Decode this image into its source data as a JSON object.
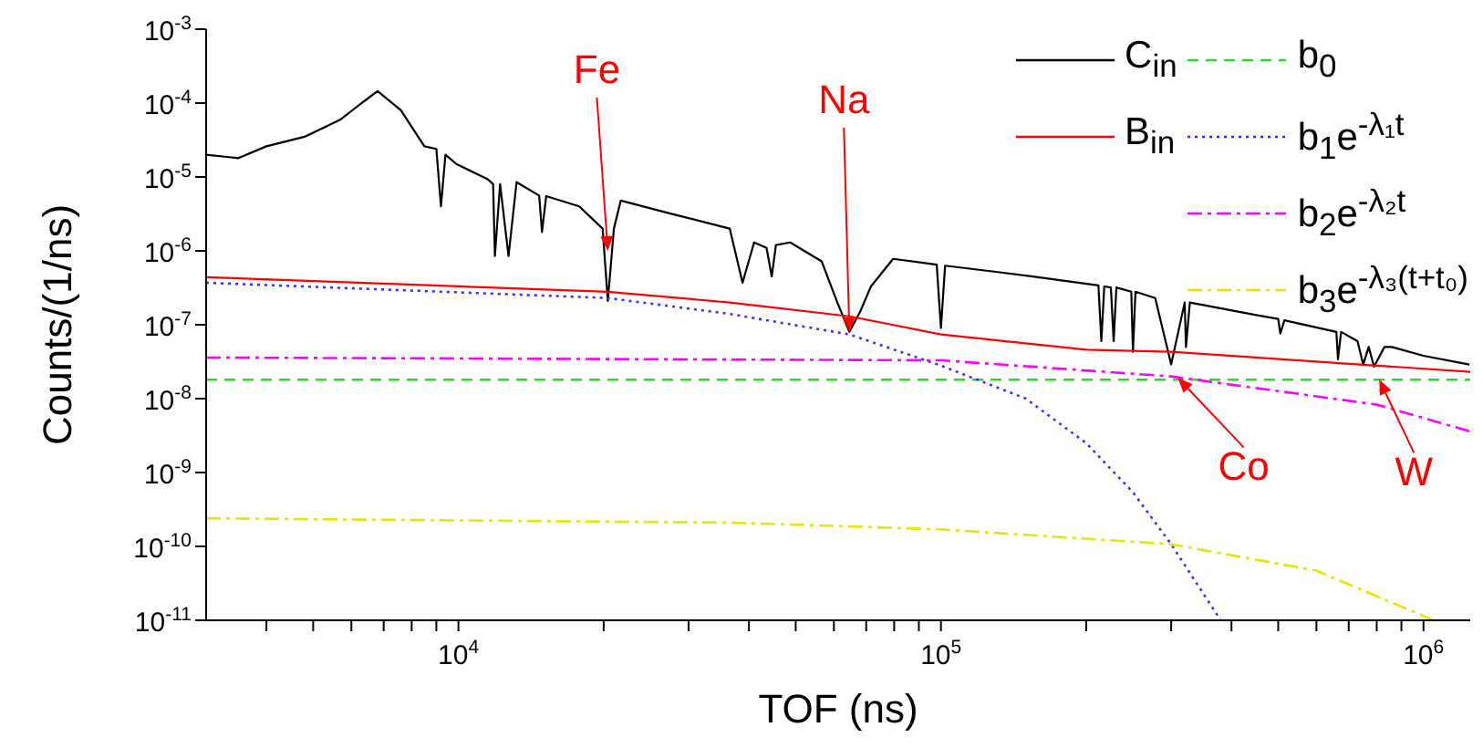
{
  "chart_data": {
    "type": "line",
    "xlabel": "TOF (ns)",
    "ylabel": "Counts/(1/ns)",
    "log": "xy",
    "legend": "top right",
    "xlim": [
      3000,
      1250000
    ],
    "xticks": [
      {
        "value": 4000,
        "label": null
      },
      {
        "value": 5000,
        "label": null
      },
      {
        "value": 6000,
        "label": null
      },
      {
        "value": 7000,
        "label": null
      },
      {
        "value": 8000,
        "label": null
      },
      {
        "value": 9000,
        "label": null
      },
      {
        "value": 10000,
        "label": "10$^{4}$"
      },
      {
        "value": 20000,
        "label": null
      },
      {
        "value": 30000,
        "label": null
      },
      {
        "value": 40000,
        "label": null
      },
      {
        "value": 50000,
        "label": null
      },
      {
        "value": 60000,
        "label": null
      },
      {
        "value": 70000,
        "label": null
      },
      {
        "value": 80000,
        "label": null
      },
      {
        "value": 90000,
        "label": null
      },
      {
        "value": 100000,
        "label": "10$^{5}$"
      },
      {
        "value": 200000,
        "label": null
      },
      {
        "value": 300000,
        "label": null
      },
      {
        "value": 400000,
        "label": null
      },
      {
        "value": 500000,
        "label": null
      },
      {
        "value": 600000,
        "label": null
      },
      {
        "value": 700000,
        "label": null
      },
      {
        "value": 800000,
        "label": null
      },
      {
        "value": 900000,
        "label": null
      },
      {
        "value": 1000000,
        "label": "10$^{6}$"
      }
    ],
    "ylim": [
      1e-11,
      0.001
    ],
    "yticks": [
      {
        "value": 1e-11,
        "label": "10$^{-11}$"
      },
      {
        "value": 1e-10,
        "label": "10$^{-10}$"
      },
      {
        "value": 1e-09,
        "label": "10$^{-9}$"
      },
      {
        "value": 1e-08,
        "label": "10$^{-8}$"
      },
      {
        "value": 1e-07,
        "label": "10$^{-7}$"
      },
      {
        "value": 1e-06,
        "label": "10$^{-6}$"
      },
      {
        "value": 1e-05,
        "label": "10$^{-5}$"
      },
      {
        "value": 0.0001,
        "label": "10$^{-4}$"
      },
      {
        "value": 0.001,
        "label": "10$^{-3}$"
      }
    ],
    "series": [
      {
        "name": "C$_{in}$",
        "color": "#000000",
        "line_style": "solid",
        "x": [
          3000,
          3500,
          4000,
          4800,
          5700,
          6300,
          6800,
          7600,
          8500,
          9000,
          9200,
          9400,
          9900,
          11500,
          11800,
          11900,
          12200,
          12700,
          13200,
          14700,
          14900,
          15200,
          17800,
          19900,
          20400,
          21000,
          21700,
          27500,
          36500,
          38800,
          41000,
          43500,
          44600,
          45500,
          48700,
          56600,
          61000,
          64600,
          68000,
          71600,
          79600,
          98000,
          100000,
          102000,
          130000,
          155000,
          212000,
          215000,
          218000,
          225000,
          228000,
          231000,
          248000,
          250000,
          253000,
          278000,
          300000,
          320000,
          322000,
          328000,
          450000,
          500000,
          505000,
          515000,
          660000,
          665000,
          675000,
          730000,
          750000,
          770000,
          790000,
          830000,
          860000,
          1000000,
          1245000
        ],
        "values": [
          2e-05,
          1.8e-05,
          2.6e-05,
          3.5e-05,
          6e-05,
          0.0001,
          0.000145,
          8e-05,
          2.6e-05,
          2.4e-05,
          4e-06,
          2e-05,
          1.5e-05,
          9.3e-06,
          8e-06,
          8.5e-07,
          8e-06,
          8.5e-07,
          8.5e-06,
          5.6e-06,
          1.8e-06,
          5.5e-06,
          4e-06,
          2e-06,
          2.1e-07,
          2e-06,
          4.8e-06,
          3.2e-06,
          2e-06,
          3.7e-07,
          1.3e-06,
          1.1e-06,
          4.5e-07,
          1.2e-06,
          1.3e-06,
          7.2e-07,
          2e-07,
          8e-08,
          1.5e-07,
          3.3e-07,
          7.8e-07,
          6.5e-07,
          9e-08,
          6.3e-07,
          5.2e-07,
          4.5e-07,
          3.4e-07,
          6e-08,
          3.3e-07,
          3.2e-07,
          6e-08,
          3.2e-07,
          2.8e-07,
          4.3e-08,
          2.8e-07,
          2.3e-07,
          2.9e-08,
          2e-07,
          5e-08,
          2e-07,
          1.35e-07,
          1.2e-07,
          7.6e-08,
          1.15e-07,
          8e-08,
          3.4e-08,
          8e-08,
          6e-08,
          2.9e-08,
          5e-08,
          2.7e-08,
          5e-08,
          5e-08,
          3.8e-08,
          2.9e-08
        ]
      },
      {
        "name": "B$_{in}$",
        "color": "#ff0000",
        "line_style": "solid",
        "x": [
          3000,
          20400,
          36500,
          64600,
          100000,
          200000,
          300000,
          800000,
          1250000
        ],
        "values": [
          4.4e-07,
          2.8e-07,
          2e-07,
          1.3e-07,
          7.4e-08,
          4.6e-08,
          4.3e-08,
          2.8e-08,
          2.3e-08
        ]
      },
      {
        "name": "b$_{0}$",
        "color": "#22dd22",
        "line_style": "dashed",
        "x": [
          3000,
          1250000
        ],
        "values": [
          1.8e-08,
          1.8e-08
        ]
      },
      {
        "name": "b$_{1}$e$^{-λ₁t}$",
        "color": "#3333ff",
        "line_style": "dotted",
        "x": [
          3000,
          20400,
          36500,
          64600,
          100000,
          150000,
          200000,
          250000,
          300000,
          380000
        ],
        "values": [
          3.7e-07,
          2.3e-07,
          1.4e-07,
          7.4e-08,
          2.8e-08,
          1e-08,
          2.5e-09,
          5.4e-10,
          1.07e-10,
          1e-11
        ]
      },
      {
        "name": "b$_{2}$e$^{-λ₂t}$",
        "color": "#ff00ff",
        "line_style": "dashdot",
        "x": [
          3000,
          100000,
          300000,
          800000,
          1250000
        ],
        "values": [
          3.6e-08,
          3.3e-08,
          2e-08,
          8.3e-09,
          3.6e-09
        ]
      },
      {
        "name": "b$_{3}$e$^{-λ₃(t+t₀)}$",
        "color": "#e6e600",
        "line_style": "dashdot",
        "x": [
          3000,
          36500,
          100000,
          300000,
          600000,
          1050000
        ],
        "values": [
          2.4e-10,
          2.1e-10,
          1.7e-10,
          1.07e-10,
          4.7e-11,
          1e-11
        ]
      }
    ],
    "annotations": [
      {
        "text": "Fe",
        "x": 20400,
        "y": 1e-06
      },
      {
        "text": "Na",
        "x": 64600,
        "y": 8e-08
      },
      {
        "text": "Co",
        "x": 310000,
        "y": 1.9e-08
      },
      {
        "text": "W",
        "x": 810000,
        "y": 1.8e-08
      }
    ]
  }
}
